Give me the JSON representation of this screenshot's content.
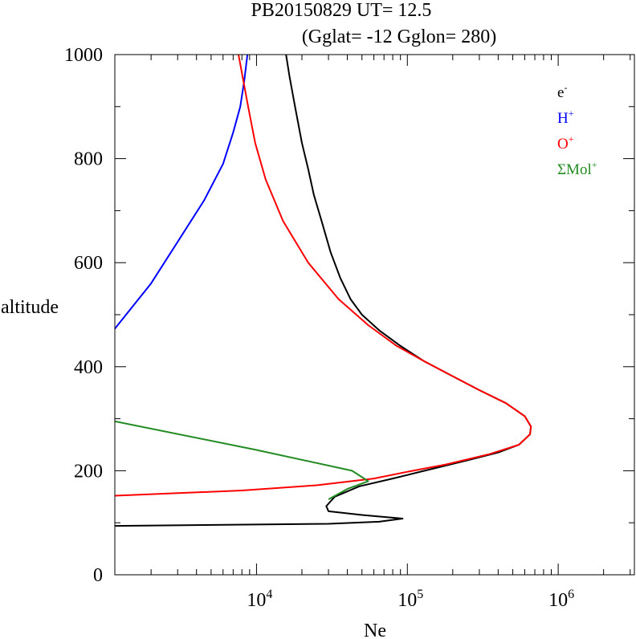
{
  "chart_data": {
    "type": "line",
    "title_line1": "PB20150829   UT=  12.5",
    "title_line2": "(Gglat= -12   Gglon=  280)",
    "xlabel": "Ne",
    "ylabel": "altitude",
    "xscale": "log",
    "xlim": [
      1150,
      3200000
    ],
    "ylim": [
      0,
      1000
    ],
    "y_ticks": [
      {
        "value": 0,
        "label": "0"
      },
      {
        "value": 200,
        "label": "200"
      },
      {
        "value": 400,
        "label": "400"
      },
      {
        "value": 600,
        "label": "600"
      },
      {
        "value": 800,
        "label": "800"
      },
      {
        "value": 1000,
        "label": "1000"
      }
    ],
    "x_ticks": [
      {
        "value": 10000,
        "base": "10",
        "exp": "4"
      },
      {
        "value": 100000,
        "base": "10",
        "exp": "5"
      },
      {
        "value": 1000000,
        "base": "10",
        "exp": "6"
      }
    ],
    "legend_placement": "top-right",
    "series": [
      {
        "name": "e⁻",
        "base": "e",
        "sup": "-",
        "color": "#000000",
        "points": [
          [
            1150,
            94
          ],
          [
            30000,
            98
          ],
          [
            65000,
            102
          ],
          [
            93000,
            108
          ],
          [
            50000,
            115
          ],
          [
            30000,
            122
          ],
          [
            29000,
            132
          ],
          [
            33000,
            150
          ],
          [
            48000,
            170
          ],
          [
            80000,
            185
          ],
          [
            130000,
            200
          ],
          [
            250000,
            220
          ],
          [
            400000,
            235
          ],
          [
            550000,
            250
          ],
          [
            650000,
            270
          ],
          [
            660000,
            285
          ],
          [
            600000,
            305
          ],
          [
            450000,
            330
          ],
          [
            300000,
            355
          ],
          [
            190000,
            385
          ],
          [
            130000,
            410
          ],
          [
            90000,
            440
          ],
          [
            65000,
            470
          ],
          [
            50000,
            500
          ],
          [
            42000,
            530
          ],
          [
            36000,
            570
          ],
          [
            31000,
            620
          ],
          [
            27000,
            680
          ],
          [
            24000,
            730
          ],
          [
            22000,
            780
          ],
          [
            20000,
            830
          ],
          [
            18000,
            900
          ],
          [
            16500,
            960
          ],
          [
            15700,
            1000
          ]
        ]
      },
      {
        "name": "H⁺",
        "base": "H",
        "sup": "+",
        "color": "#0000ff",
        "points": [
          [
            1150,
            473
          ],
          [
            2000,
            560
          ],
          [
            3000,
            640
          ],
          [
            4500,
            720
          ],
          [
            6000,
            790
          ],
          [
            7000,
            850
          ],
          [
            7800,
            900
          ],
          [
            8300,
            950
          ],
          [
            8700,
            1000
          ]
        ]
      },
      {
        "name": "O⁺",
        "base": "O",
        "sup": "+",
        "color": "#ff0000",
        "points": [
          [
            1150,
            152
          ],
          [
            8000,
            162
          ],
          [
            25000,
            172
          ],
          [
            60000,
            185
          ],
          [
            100000,
            198
          ],
          [
            180000,
            212
          ],
          [
            350000,
            232
          ],
          [
            550000,
            250
          ],
          [
            650000,
            270
          ],
          [
            660000,
            285
          ],
          [
            600000,
            305
          ],
          [
            450000,
            330
          ],
          [
            300000,
            355
          ],
          [
            190000,
            385
          ],
          [
            130000,
            410
          ],
          [
            85000,
            440
          ],
          [
            55000,
            480
          ],
          [
            35000,
            530
          ],
          [
            22000,
            600
          ],
          [
            15000,
            680
          ],
          [
            11500,
            760
          ],
          [
            9800,
            830
          ],
          [
            8800,
            900
          ],
          [
            7600,
            1000
          ]
        ]
      },
      {
        "name": "ΣMol⁺",
        "base": "ΣMol",
        "sup": "+",
        "color": "#228b22",
        "points": [
          [
            1150,
            295
          ],
          [
            10000,
            240
          ],
          [
            43000,
            200
          ],
          [
            55000,
            180
          ],
          [
            40000,
            165
          ],
          [
            30000,
            145
          ]
        ]
      }
    ]
  }
}
